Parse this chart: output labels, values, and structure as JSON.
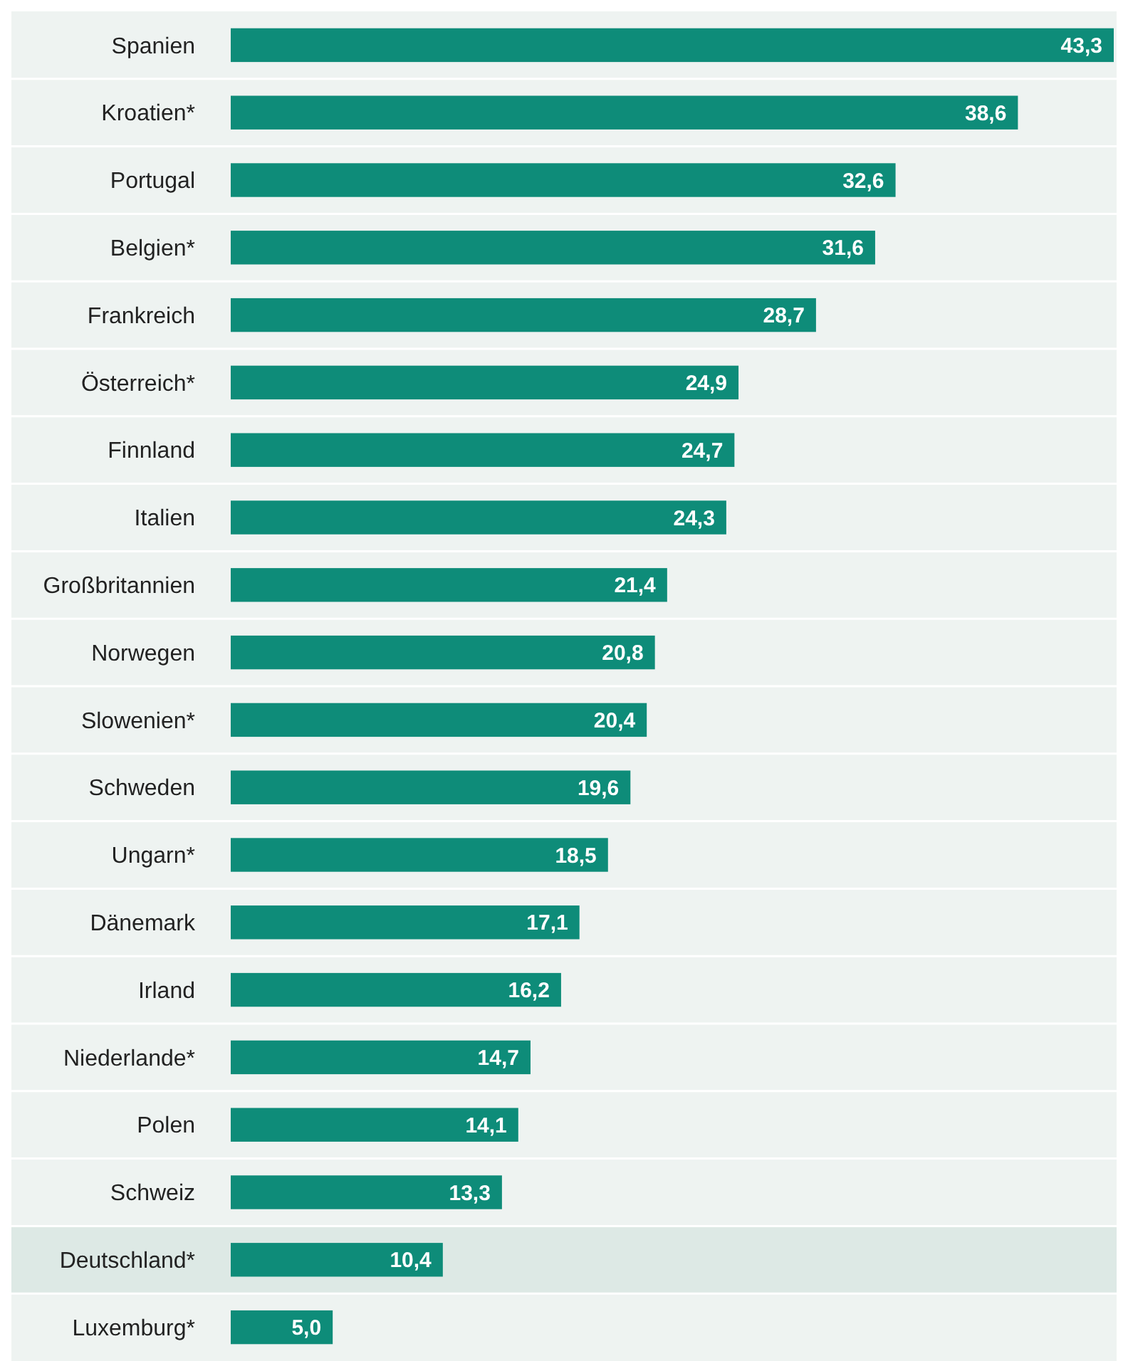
{
  "chart_data": {
    "type": "bar",
    "orientation": "horizontal",
    "categories": [
      "Spanien",
      "Kroatien*",
      "Portugal",
      "Belgien*",
      "Frankreich",
      "Österreich*",
      "Finnland",
      "Italien",
      "Großbritannien",
      "Norwegen",
      "Slowenien*",
      "Schweden",
      "Ungarn*",
      "Dänemark",
      "Irland",
      "Niederlande*",
      "Polen",
      "Schweiz",
      "Deutschland*",
      "Luxemburg*"
    ],
    "values": [
      43.3,
      38.6,
      32.6,
      31.6,
      28.7,
      24.9,
      24.7,
      24.3,
      21.4,
      20.8,
      20.4,
      19.6,
      18.5,
      17.1,
      16.2,
      14.7,
      14.1,
      13.3,
      10.4,
      5.0
    ],
    "value_labels": [
      "43,3",
      "38,6",
      "32,6",
      "31,6",
      "28,7",
      "24,9",
      "24,7",
      "24,3",
      "21,4",
      "20,8",
      "20,4",
      "19,6",
      "18,5",
      "17,1",
      "16,2",
      "14,7",
      "14,1",
      "13,3",
      "10,4",
      "5,0"
    ],
    "color": "#0e8c79",
    "xlim": [
      0,
      43.3
    ],
    "tick_labels": "y",
    "bands": [
      {
        "axis": "y",
        "from": "Deutschland*",
        "to": "Deutschland*",
        "color": "#dde9e5"
      }
    ]
  }
}
